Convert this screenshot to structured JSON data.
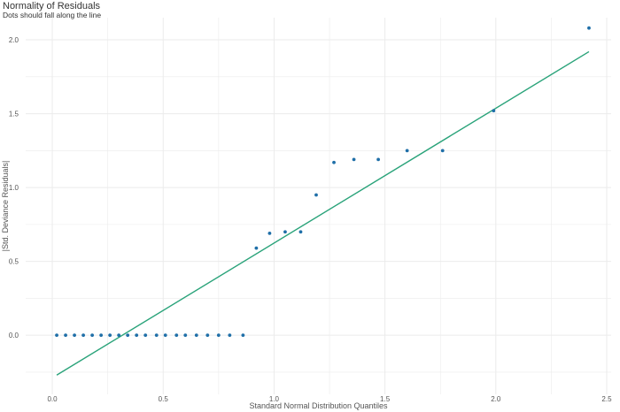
{
  "chart_data": {
    "type": "scatter",
    "title": "Normality of Residuals",
    "subtitle": "Dots should fall along the line",
    "xlabel": "Standard Normal Distribution Quantiles",
    "ylabel": "|Std. Deviance Residuals|",
    "xlim": [
      -0.12,
      2.52
    ],
    "ylim": [
      -0.4,
      2.15
    ],
    "xticks": [
      0.0,
      0.5,
      1.0,
      1.5,
      2.0,
      2.5
    ],
    "xtick_labels": [
      "0.0",
      "0.5",
      "1.0",
      "1.5",
      "2.0",
      "2.5"
    ],
    "yticks": [
      0.0,
      0.5,
      1.0,
      1.5,
      2.0
    ],
    "ytick_labels": [
      "0.0",
      "0.5",
      "1.0",
      "1.5",
      "2.0"
    ],
    "grid": true,
    "colors": {
      "points": "#1f6fa8",
      "line": "#2aa37a",
      "grid": "#ebebeb"
    },
    "points": {
      "x": [
        0.02,
        0.06,
        0.1,
        0.14,
        0.18,
        0.22,
        0.26,
        0.3,
        0.34,
        0.38,
        0.42,
        0.47,
        0.51,
        0.56,
        0.6,
        0.65,
        0.7,
        0.75,
        0.8,
        0.86,
        0.92,
        0.98,
        1.05,
        1.12,
        1.19,
        1.27,
        1.36,
        1.47,
        1.6,
        1.76,
        1.99,
        2.42
      ],
      "y": [
        0.0,
        0.0,
        0.0,
        0.0,
        0.0,
        0.0,
        0.0,
        0.0,
        0.0,
        0.0,
        0.0,
        0.0,
        0.0,
        0.0,
        0.0,
        0.0,
        0.0,
        0.0,
        0.0,
        0.0,
        0.59,
        0.69,
        0.7,
        0.7,
        0.95,
        1.17,
        1.19,
        1.19,
        1.25,
        1.25,
        1.52,
        2.08
      ]
    },
    "reference_line": {
      "x": [
        0.02,
        2.42
      ],
      "y": [
        -0.27,
        1.92
      ]
    }
  }
}
